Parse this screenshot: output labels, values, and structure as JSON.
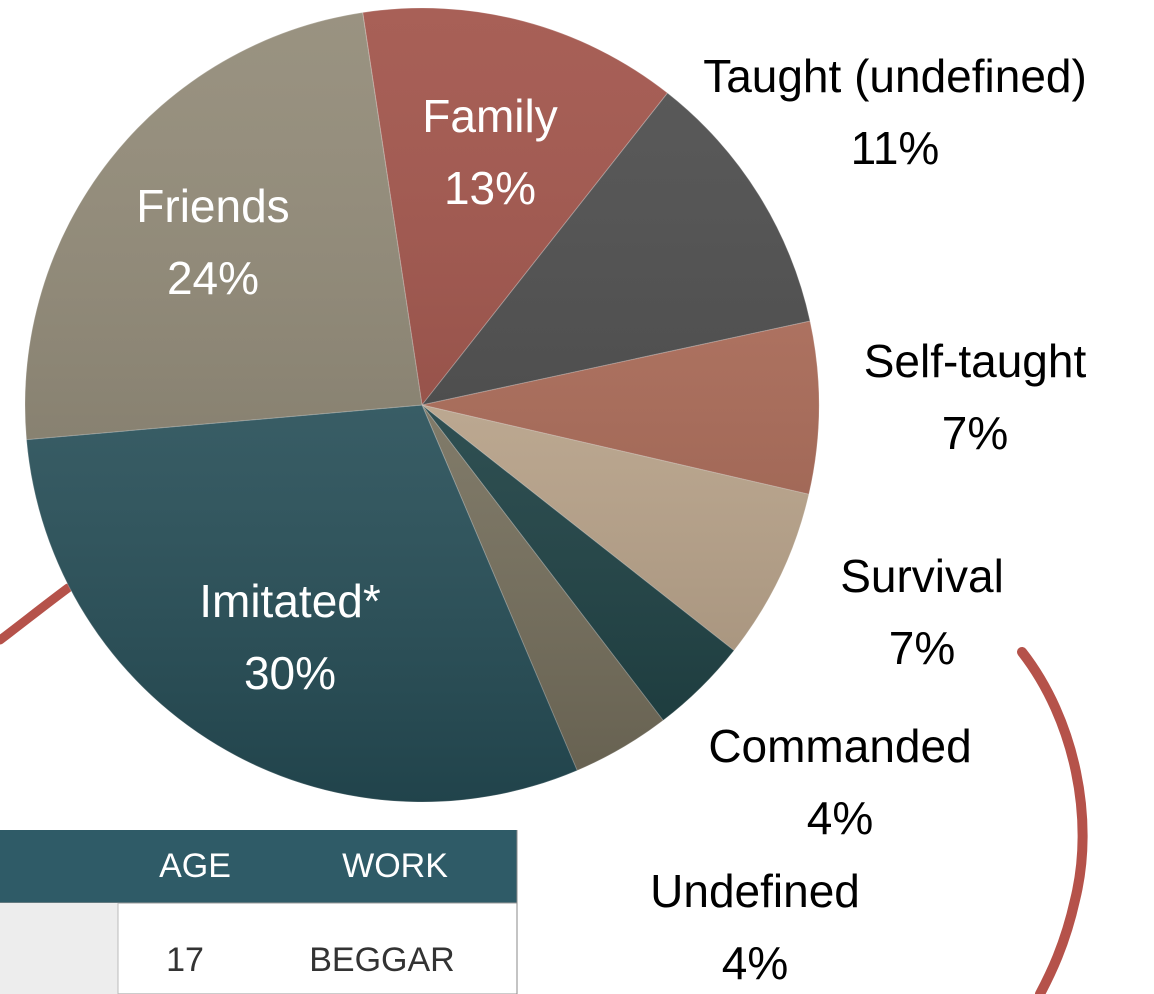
{
  "chart_data": {
    "type": "pie",
    "categories": [
      "Family",
      "Taught (undefined)",
      "Self-taught",
      "Survival",
      "Commanded",
      "Undefined",
      "Imitated*",
      "Friends"
    ],
    "values": [
      13,
      11,
      7,
      7,
      4,
      4,
      30,
      24
    ],
    "value_labels": [
      "13%",
      "11%",
      "7%",
      "7%",
      "4%",
      "4%",
      "30%",
      "24%"
    ],
    "colors": [
      "#9c4a40",
      "#444444",
      "#b06a55",
      "#c8b094",
      "#1f4649",
      "#817a65",
      "#2a5660",
      "#8c8470"
    ]
  },
  "table": {
    "headers": [
      "AGE",
      "WORK"
    ],
    "rows": [
      [
        "17",
        "BEGGAR"
      ]
    ]
  }
}
